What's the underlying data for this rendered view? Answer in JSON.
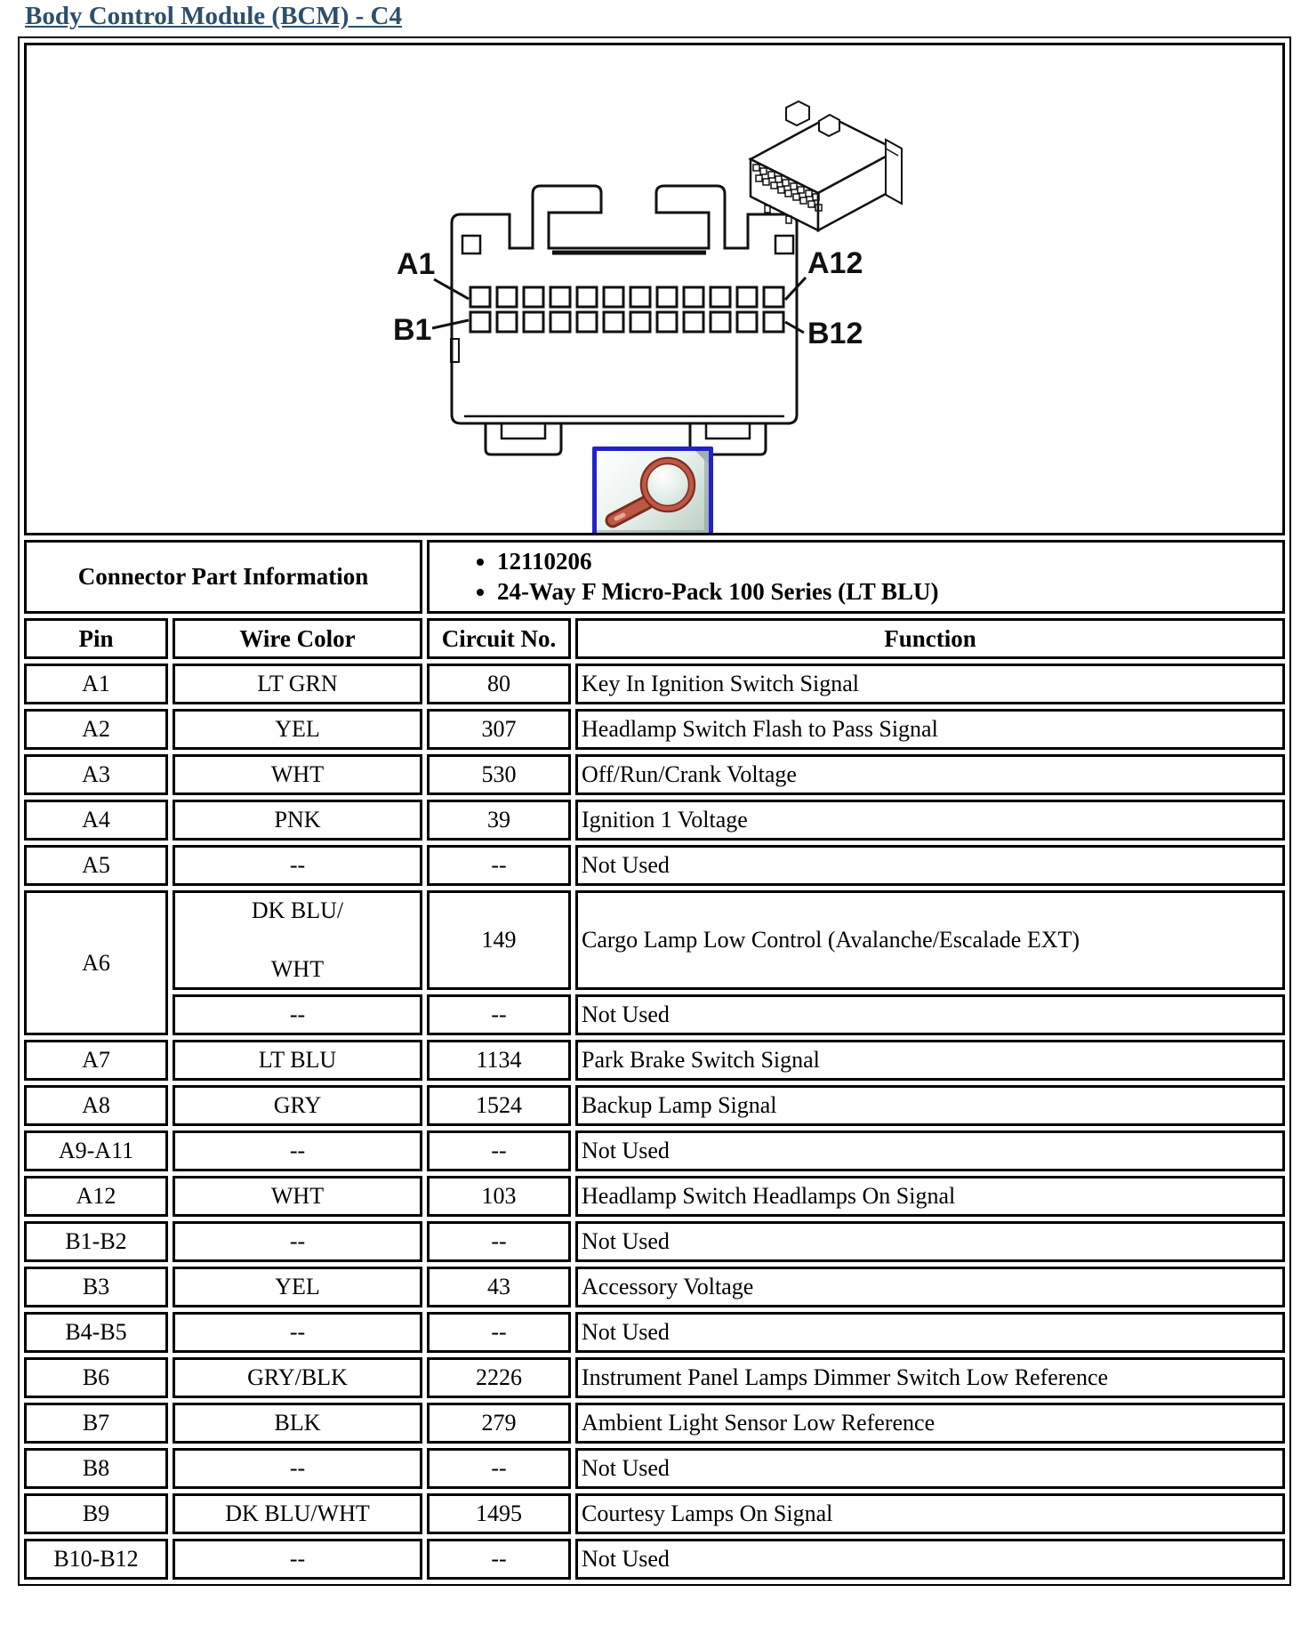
{
  "page": {
    "title": "Body Control Module (BCM) - C4"
  },
  "colors": {
    "title": "#2d4f6b",
    "table_border": "#000000",
    "zoom_button_border": "#2222c8",
    "magnifier_rim": "#bd5746",
    "magnifier_rim_dark": "#7c2d1e",
    "button_bg_top": "#ffffff",
    "button_bg_bottom": "#b9cec4"
  },
  "diagram": {
    "pin_labels": [
      "A1",
      "A12",
      "B1",
      "B12"
    ],
    "views": [
      "connector-front-view",
      "connector-isometric-view"
    ],
    "zoom_button_icon": "magnifier-icon"
  },
  "part_info": {
    "label": "Connector Part Information",
    "bullets": [
      "12110206",
      "24-Way F Micro-Pack 100 Series (LT BLU)"
    ]
  },
  "pinout": {
    "headers": [
      "Pin",
      "Wire Color",
      "Circuit No.",
      "Function"
    ],
    "rows": [
      {
        "pin": "A1",
        "wire": "LT GRN",
        "circuit": "80",
        "function": "Key In Ignition Switch Signal"
      },
      {
        "pin": "A2",
        "wire": "YEL",
        "circuit": "307",
        "function": "Headlamp Switch Flash to Pass Signal"
      },
      {
        "pin": "A3",
        "wire": "WHT",
        "circuit": "530",
        "function": "Off/Run/Crank Voltage"
      },
      {
        "pin": "A4",
        "wire": "PNK",
        "circuit": "39",
        "function": "Ignition 1 Voltage"
      },
      {
        "pin": "A5",
        "wire": "--",
        "circuit": "--",
        "function": "Not Used"
      },
      {
        "pin": "A6",
        "pin_rowspan": 2,
        "tall": true,
        "wire_lines": [
          "DK BLU/",
          "WHT"
        ],
        "circuit": "149",
        "function": "Cargo Lamp Low Control (Avalanche/Escalade EXT)"
      },
      {
        "pin": null,
        "wire": "--",
        "circuit": "--",
        "function": "Not Used"
      },
      {
        "pin": "A7",
        "wire": "LT BLU",
        "circuit": "1134",
        "function": "Park Brake Switch Signal"
      },
      {
        "pin": "A8",
        "wire": "GRY",
        "circuit": "1524",
        "function": "Backup Lamp Signal"
      },
      {
        "pin": "A9-A11",
        "wire": "--",
        "circuit": "--",
        "function": "Not Used"
      },
      {
        "pin": "A12",
        "wire": "WHT",
        "circuit": "103",
        "function": "Headlamp Switch Headlamps On Signal"
      },
      {
        "pin": "B1-B2",
        "wire": "--",
        "circuit": "--",
        "function": "Not Used"
      },
      {
        "pin": "B3",
        "wire": "YEL",
        "circuit": "43",
        "function": "Accessory Voltage"
      },
      {
        "pin": "B4-B5",
        "wire": "--",
        "circuit": "--",
        "function": "Not Used"
      },
      {
        "pin": "B6",
        "wire": "GRY/BLK",
        "circuit": "2226",
        "function": "Instrument Panel Lamps Dimmer Switch Low Reference"
      },
      {
        "pin": "B7",
        "wire": "BLK",
        "circuit": "279",
        "function": "Ambient Light Sensor Low Reference"
      },
      {
        "pin": "B8",
        "wire": "--",
        "circuit": "--",
        "function": "Not Used"
      },
      {
        "pin": "B9",
        "wire": "DK BLU/WHT",
        "circuit": "1495",
        "function": "Courtesy Lamps On Signal"
      },
      {
        "pin": "B10-B12",
        "wire": "--",
        "circuit": "--",
        "function": "Not Used"
      }
    ]
  }
}
